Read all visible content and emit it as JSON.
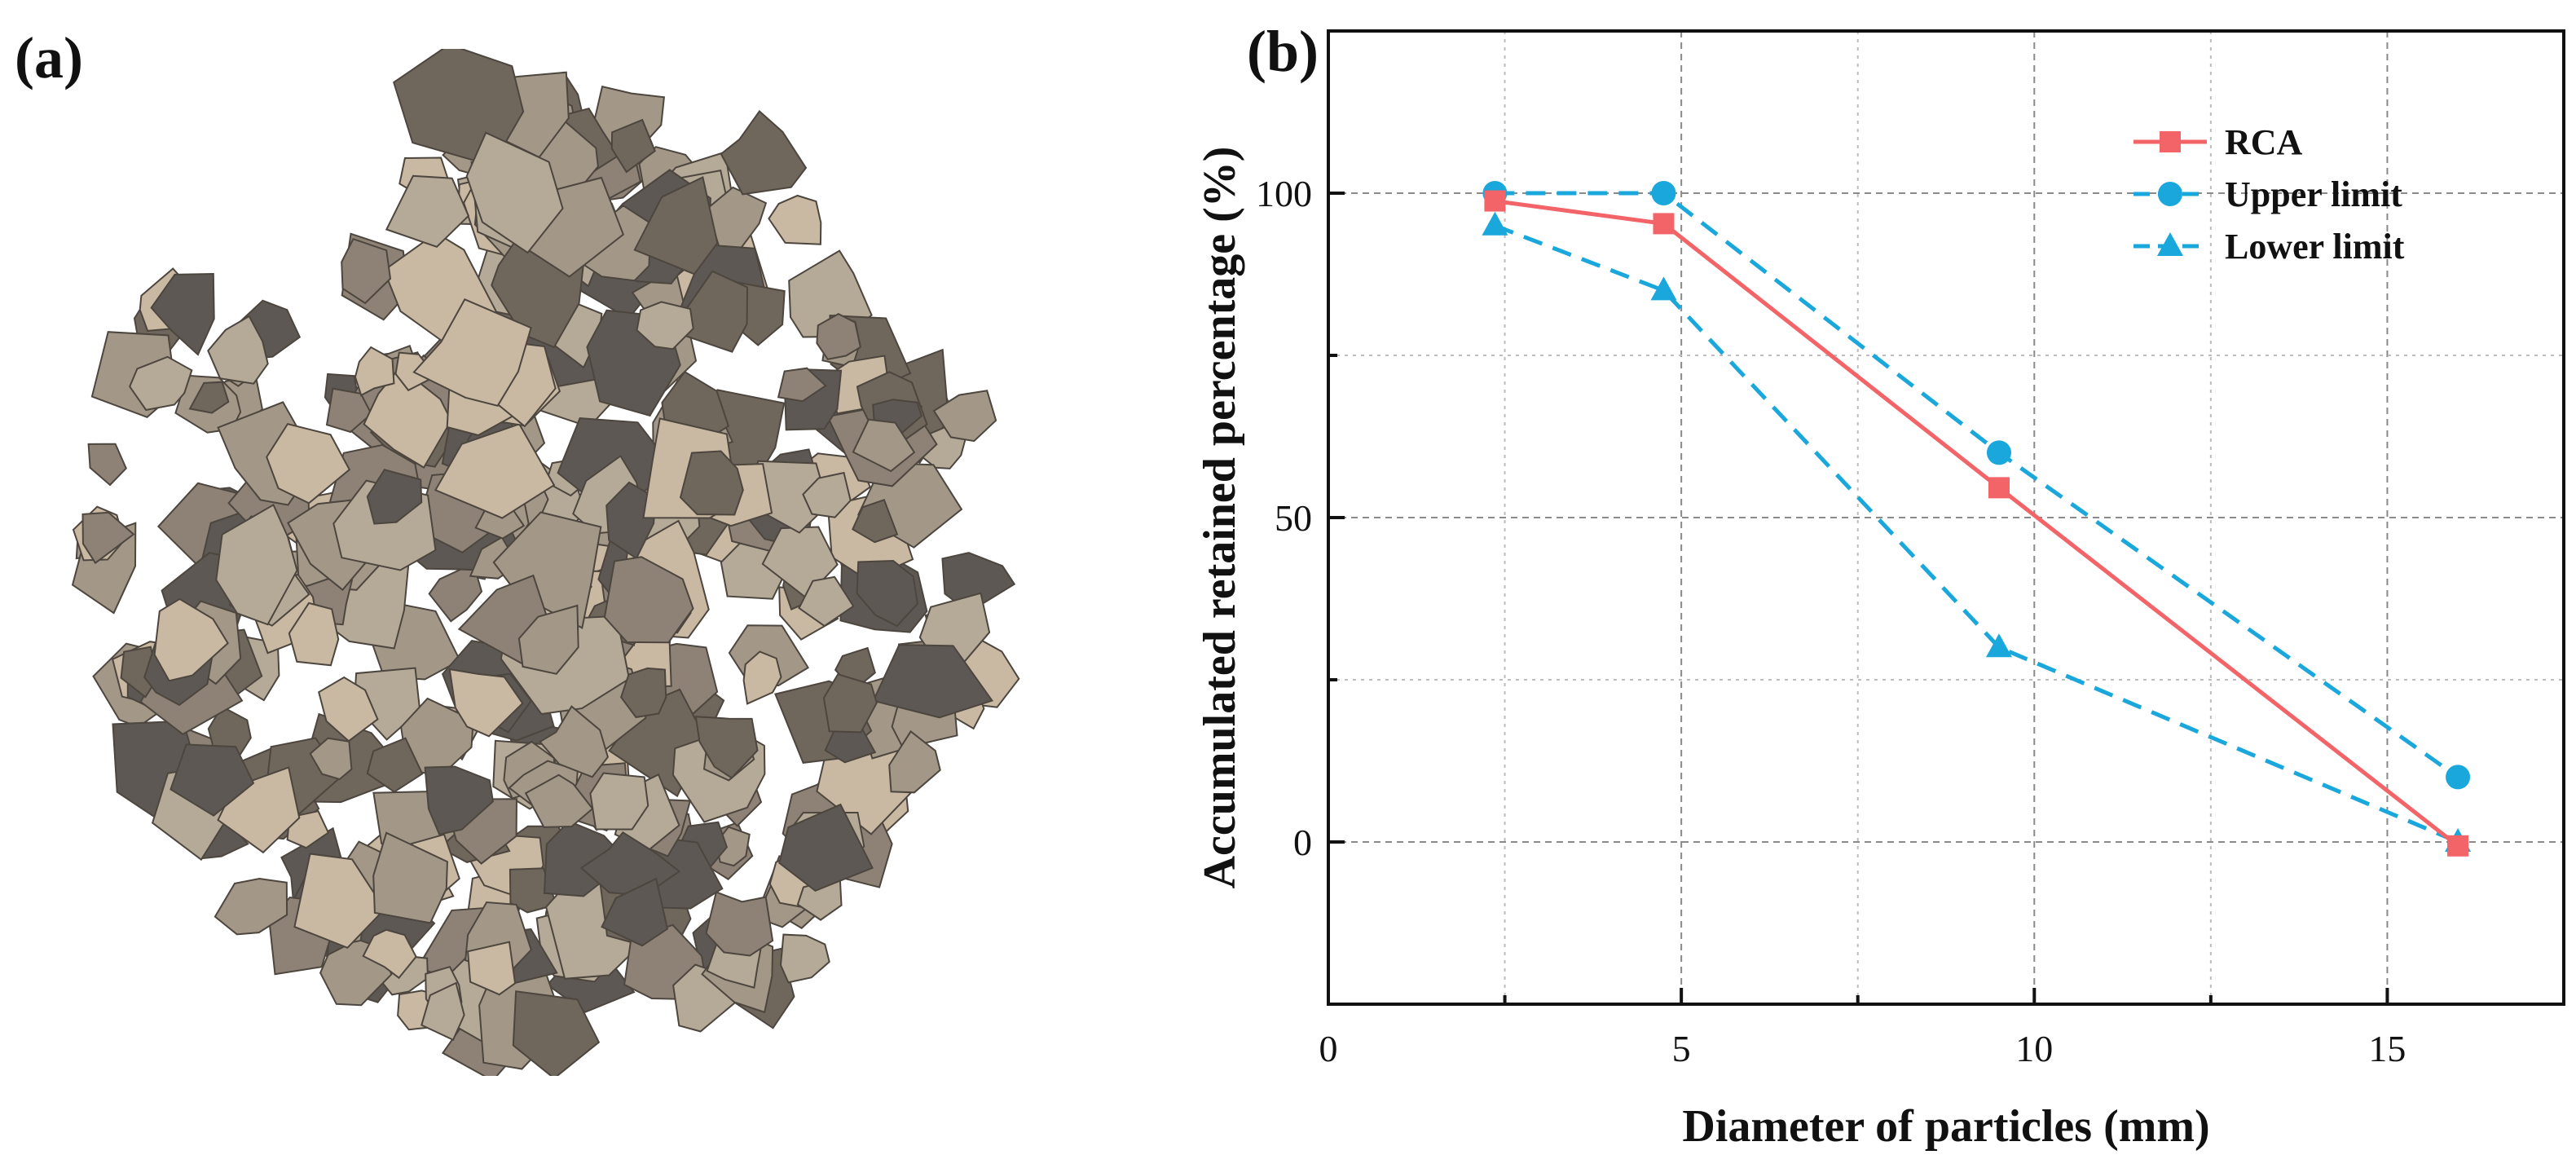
{
  "panels": {
    "a_label": "(a)",
    "b_label": "(b)"
  },
  "photo": {
    "subject": "recycled concrete aggregate pile",
    "palette": [
      "#8d8275",
      "#a39887",
      "#6f665c",
      "#b5aa98",
      "#5d5853",
      "#c9b8a2"
    ]
  },
  "chart_data": {
    "type": "line",
    "xlabel": "Diameter of particles (mm)",
    "ylabel": "Accumulated retained percentage (%)",
    "xlim": [
      0,
      17.5
    ],
    "ylim": [
      -25,
      125
    ],
    "xticks": [
      0,
      5,
      10,
      15
    ],
    "yticks": [
      0,
      50,
      100
    ],
    "grid": true,
    "legend_position": "top-right",
    "series": [
      {
        "name": "RCA",
        "x": [
          2.36,
          4.75,
          9.5,
          16
        ],
        "values": [
          98.8,
          95.3,
          54.6,
          -0.6
        ],
        "color": "#f26467",
        "marker": "square",
        "line": "solid"
      },
      {
        "name": "Upper limit",
        "x": [
          2.36,
          4.75,
          9.5,
          16
        ],
        "values": [
          100,
          100,
          60,
          10
        ],
        "color": "#1aa7dc",
        "marker": "circle",
        "line": "dashed"
      },
      {
        "name": "Lower limit",
        "x": [
          2.36,
          4.75,
          9.5,
          16
        ],
        "values": [
          95,
          85,
          30,
          0
        ],
        "color": "#1aa7dc",
        "marker": "triangle",
        "line": "dashed"
      }
    ]
  }
}
